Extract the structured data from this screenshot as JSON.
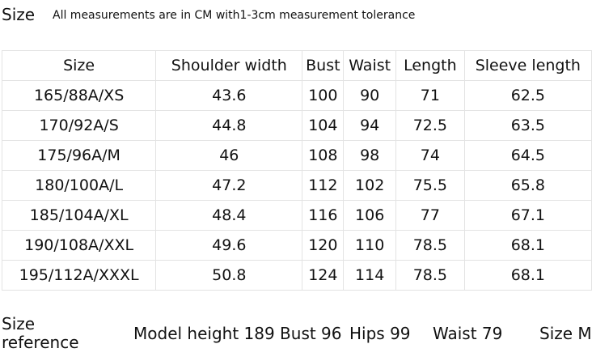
{
  "header": {
    "title": "Size",
    "note": "All measurements are in CM with1-3cm measurement tolerance"
  },
  "table": {
    "columns": [
      "Size",
      "Shoulder width",
      "Bust",
      "Waist",
      "Length",
      "Sleeve length"
    ],
    "rows": [
      [
        "165/88A/XS",
        "43.6",
        "100",
        "90",
        "71",
        "62.5"
      ],
      [
        "170/92A/S",
        "44.8",
        "104",
        "94",
        "72.5",
        "63.5"
      ],
      [
        "175/96A/M",
        "46",
        "108",
        "98",
        "74",
        "64.5"
      ],
      [
        "180/100A/L",
        "47.2",
        "112",
        "102",
        "75.5",
        "65.8"
      ],
      [
        "185/104A/XL",
        "48.4",
        "116",
        "106",
        "77",
        "67.1"
      ],
      [
        "190/108A/XXL",
        "49.6",
        "120",
        "110",
        "78.5",
        "68.1"
      ],
      [
        "195/112A/XXXL",
        "50.8",
        "124",
        "114",
        "78.5",
        "68.1"
      ]
    ]
  },
  "footer": {
    "label_line1": "Size",
    "label_line2": "reference",
    "items": [
      "Model height 189 Bust 96",
      "Hips 99",
      "Waist 79",
      "Size M"
    ]
  }
}
